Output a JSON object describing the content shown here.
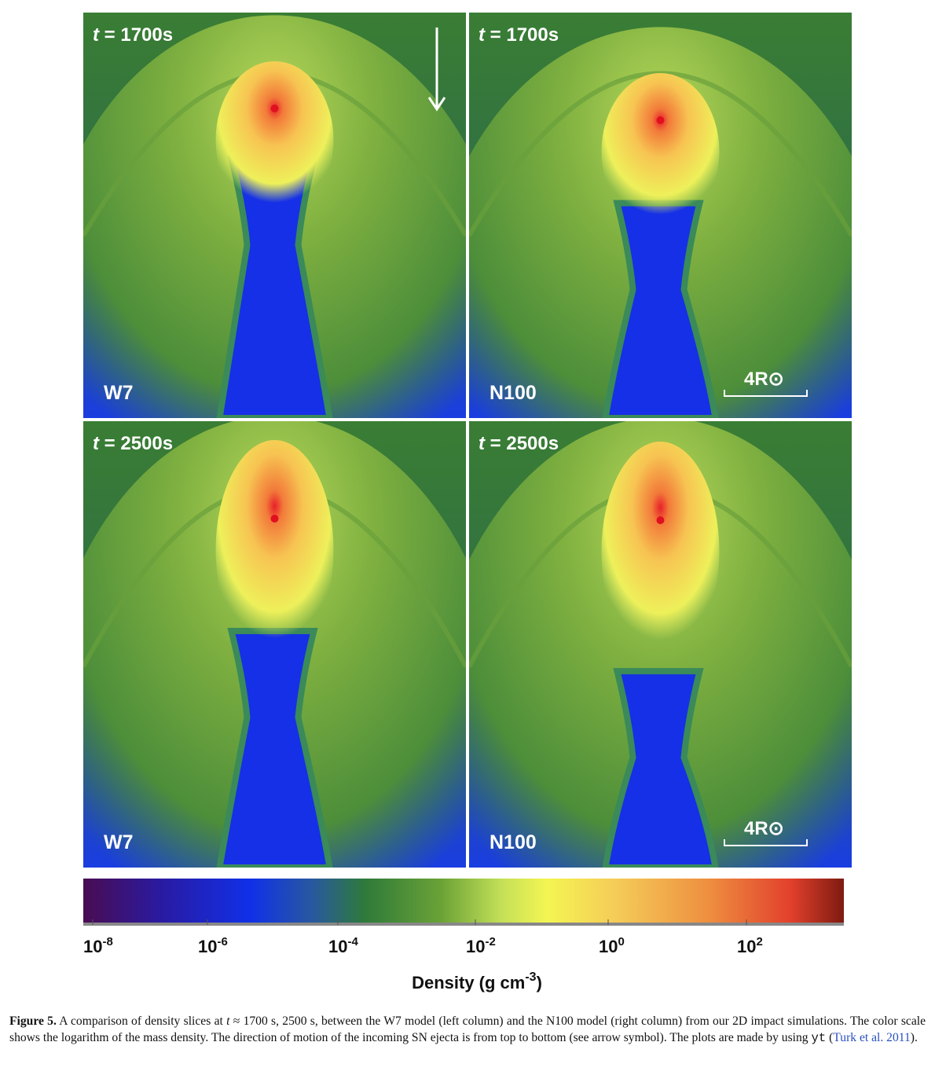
{
  "panels": [
    {
      "time_var": "t",
      "time_label": " = 1700s",
      "model": "W7"
    },
    {
      "time_var": "t",
      "time_label": " = 1700s",
      "model": "N100",
      "scale": "4R⊙"
    },
    {
      "time_var": "t",
      "time_label": " = 2500s",
      "model": "W7"
    },
    {
      "time_var": "t",
      "time_label": " = 2500s",
      "model": "N100",
      "scale": "4R⊙"
    }
  ],
  "colorbar": {
    "ticks": [
      {
        "base": "10",
        "exp": "-8"
      },
      {
        "base": "10",
        "exp": "-6"
      },
      {
        "base": "10",
        "exp": "-4"
      },
      {
        "base": "10",
        "exp": "-2"
      },
      {
        "base": "10",
        "exp": "0"
      },
      {
        "base": "10",
        "exp": "2"
      }
    ],
    "label_main": "Density  (g cm",
    "label_exp": "-3",
    "label_end": ")"
  },
  "caption": {
    "label": "Figure 5.",
    "text1": " A comparison of density slices at ",
    "var": "t",
    "text2": " ≈ 1700 s, 2500 s, between the W7 model (left column) and the N100 model (right column) from our 2D impact simulations. The color scale shows the logarithm of the mass density. The direction of motion of the incoming SN ejecta is from top to bottom (see arrow symbol). The plots are made by using ",
    "code": "yt",
    "text3": " (",
    "cite": "Turk et al. 2011",
    "text4": ")."
  }
}
